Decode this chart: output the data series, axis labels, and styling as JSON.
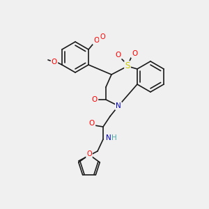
{
  "bg_color": "#f0f0f0",
  "bond_color": "#1a1a1a",
  "atom_colors": {
    "O": "#ff0000",
    "N": "#0000cc",
    "S": "#cccc00",
    "H": "#44aaaa",
    "C": "#1a1a1a"
  },
  "font_size_atom": 7.5,
  "font_size_small": 6.0,
  "line_width": 1.2
}
